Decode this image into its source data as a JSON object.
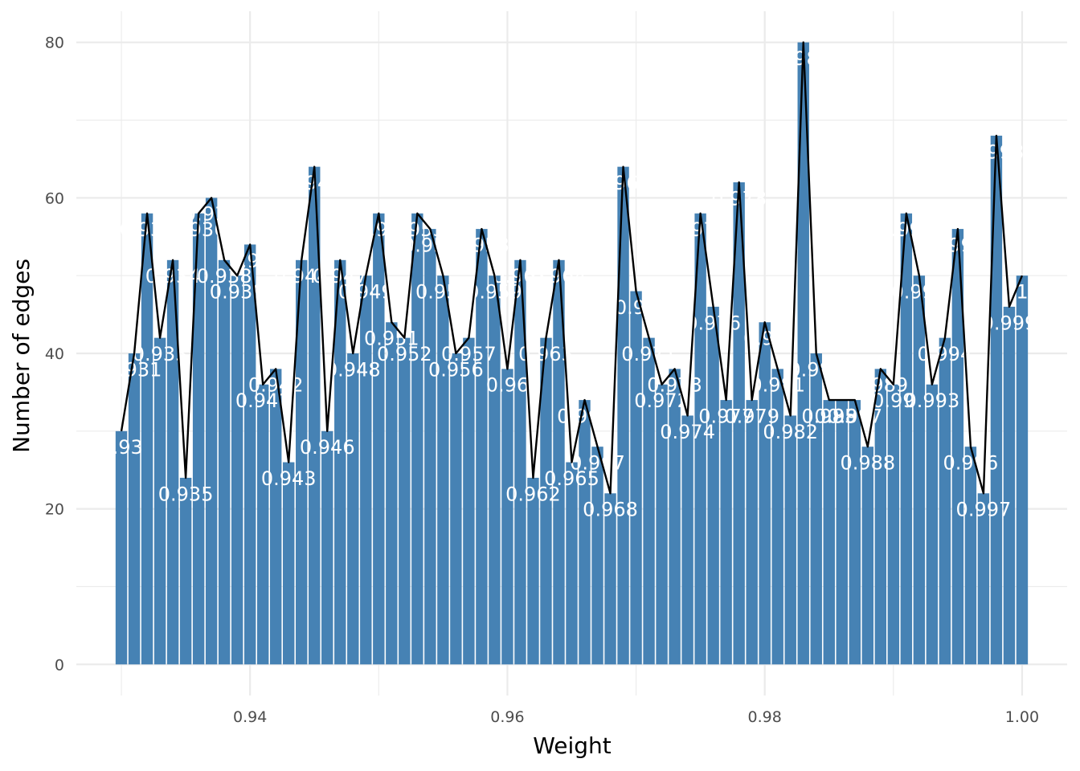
{
  "chart_data": {
    "type": "bar",
    "xlabel": "Weight",
    "ylabel": "Number of edges",
    "xlim": [
      0.9265,
      1.0035
    ],
    "ylim": [
      -4,
      84
    ],
    "x_ticks": [
      0.94,
      0.96,
      0.98,
      1.0
    ],
    "x_tick_labels": [
      "0.94",
      "0.96",
      "0.98",
      "1.00"
    ],
    "y_ticks": [
      0,
      20,
      40,
      60,
      80
    ],
    "y_tick_labels": [
      "0",
      "20",
      "40",
      "60",
      "80"
    ],
    "grid": true,
    "bar_color": "#4682b4",
    "line_color": "#000000",
    "x": [
      0.93,
      0.931,
      0.932,
      0.933,
      0.934,
      0.935,
      0.936,
      0.937,
      0.938,
      0.939,
      0.94,
      0.941,
      0.942,
      0.943,
      0.944,
      0.945,
      0.946,
      0.947,
      0.948,
      0.949,
      0.95,
      0.951,
      0.952,
      0.953,
      0.954,
      0.955,
      0.956,
      0.957,
      0.958,
      0.959,
      0.96,
      0.961,
      0.962,
      0.963,
      0.964,
      0.965,
      0.966,
      0.967,
      0.968,
      0.969,
      0.97,
      0.971,
      0.972,
      0.973,
      0.974,
      0.975,
      0.976,
      0.977,
      0.978,
      0.979,
      0.98,
      0.981,
      0.982,
      0.983,
      0.984,
      0.985,
      0.986,
      0.987,
      0.988,
      0.989,
      0.99,
      0.991,
      0.992,
      0.993,
      0.994,
      0.995,
      0.996,
      0.997,
      0.998,
      0.999,
      1.0
    ],
    "values": [
      30,
      40,
      58,
      42,
      52,
      24,
      58,
      60,
      52,
      50,
      54,
      36,
      38,
      26,
      52,
      64,
      30,
      52,
      40,
      50,
      58,
      44,
      42,
      58,
      56,
      50,
      40,
      42,
      56,
      50,
      38,
      52,
      24,
      42,
      52,
      26,
      34,
      28,
      22,
      64,
      48,
      42,
      36,
      38,
      32,
      58,
      46,
      34,
      62,
      34,
      44,
      38,
      32,
      80,
      40,
      34,
      34,
      34,
      28,
      38,
      36,
      58,
      50,
      36,
      42,
      56,
      28,
      22,
      68,
      46,
      50
    ],
    "labels": [
      "0.93",
      "0.931",
      "0.932",
      "0.933",
      "0.934",
      "0.935",
      "0.936",
      "0.937",
      "0.938",
      "0.939",
      "0.94",
      "0.941",
      "0.942",
      "0.943",
      "0.944",
      "0.945",
      "0.946",
      "0.947",
      "0.948",
      "0.949",
      "0.95",
      "0.951",
      "0.952",
      "0.953",
      "0.954",
      "0.955",
      "0.956",
      "0.957",
      "0.958",
      "0.959",
      "0.96",
      "0.961",
      "0.962",
      "0.963",
      "0.964",
      "0.965",
      "0.966",
      "0.967",
      "0.968",
      "0.969",
      "0.97",
      "0.971",
      "0.972",
      "0.973",
      "0.974",
      "0.975",
      "0.976",
      "0.977",
      "0.978",
      "0.979",
      "0.98",
      "0.981",
      "0.982",
      "0.983",
      "0.984",
      "0.985",
      "0.986",
      "0.987",
      "0.988",
      "0.989",
      "0.99",
      "0.991",
      "0.992",
      "0.993",
      "0.994",
      "0.995",
      "0.996",
      "0.997",
      "0.998",
      "0.999",
      "1"
    ]
  }
}
